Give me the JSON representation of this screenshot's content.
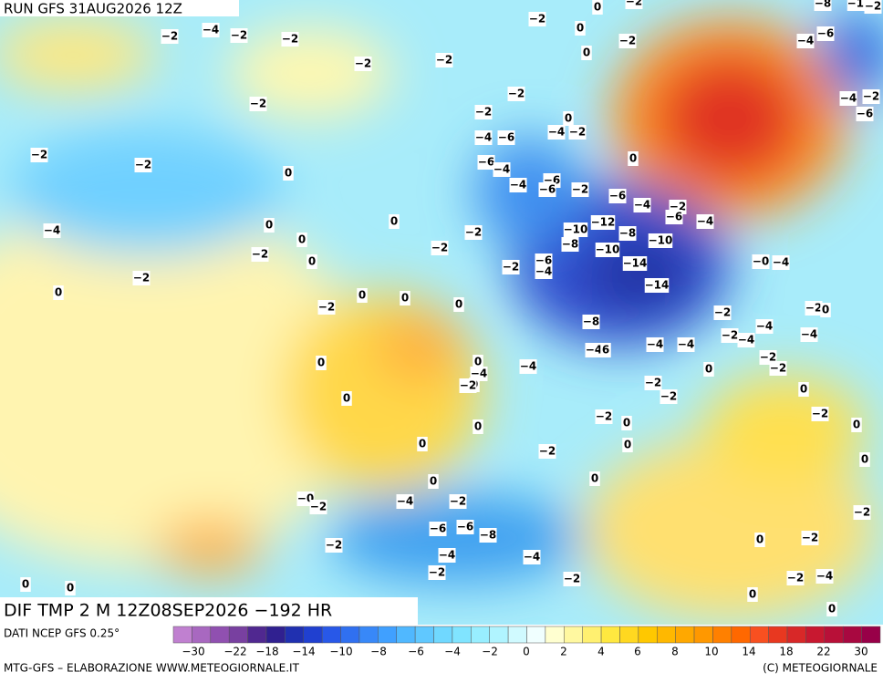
{
  "header": {
    "run": "RUN GFS 31AUG2026 12Z"
  },
  "map_title": "DIF TMP 2 M 12Z08SEP2026 −192 HR",
  "source": "DATI NCEP GFS 0.25°",
  "footer": {
    "left": "MTG-GFS – ELABORAZIONE WWW.METEOGIORNALE.IT",
    "right": "(C) METEOGIORNALE"
  },
  "colorbar": {
    "labels": [
      "−30",
      "−22",
      "−18",
      "−14",
      "−10",
      "−8",
      "−6",
      "−4",
      "−2",
      "0",
      "2",
      "4",
      "6",
      "8",
      "10",
      "14",
      "18",
      "22",
      "30"
    ],
    "colors": [
      "#c080d0",
      "#a868c0",
      "#9050b0",
      "#7840a0",
      "#502890",
      "#302090",
      "#2030b0",
      "#2040d0",
      "#2858e8",
      "#3070f0",
      "#3888f8",
      "#40a0ff",
      "#50b8ff",
      "#60c8ff",
      "#70d8ff",
      "#80e4ff",
      "#98eeff",
      "#b0f4ff",
      "#d0faff",
      "#f0ffff",
      "#ffffd0",
      "#fff8a0",
      "#fff070",
      "#ffe840",
      "#ffd820",
      "#ffc800",
      "#ffb800",
      "#ffa800",
      "#ff9800",
      "#ff8000",
      "#ff6800",
      "#f85020",
      "#e83820",
      "#d82828",
      "#c81830",
      "#b81038",
      "#a80840",
      "#980048"
    ]
  },
  "map_labels": [
    "−2",
    "−4",
    "−2",
    "−2",
    "−2",
    "−2",
    "−2",
    "0",
    "0",
    "−2",
    "0",
    "−2",
    "−2",
    "−2",
    "0",
    "−4",
    "−2",
    "−4",
    "−6",
    "−2",
    "−2",
    "0",
    "−6",
    "−4",
    "0",
    "−4",
    "−6",
    "−6",
    "−2",
    "−6",
    "−4",
    "−2",
    "−6",
    "−4",
    "0",
    "0",
    "−4",
    "0",
    "−10",
    "−12",
    "−8",
    "−8",
    "−10",
    "−10",
    "−2",
    "−2",
    "−2",
    "0",
    "−6",
    "−2",
    "−4",
    "−14",
    "−2",
    "0",
    "0",
    "0",
    "−2",
    "0",
    "−14",
    "−0",
    "−4",
    "−2",
    "0",
    "−8",
    "−2",
    "−4",
    "−4",
    "−2",
    "−4",
    "−4",
    "6",
    "−4",
    "−4",
    "0",
    "0",
    "−4",
    "0",
    "−4",
    "0",
    "−2",
    "−2",
    "0",
    "−2",
    "−2",
    "−2",
    "0",
    "−2",
    "−2",
    "0",
    "0",
    "0",
    "0",
    "−2",
    "0",
    "0",
    "0",
    "0",
    "−0",
    "−2",
    "−4",
    "−2",
    "−6",
    "−6",
    "−8",
    "−2",
    "−4",
    "−4",
    "0",
    "−2",
    "−2",
    "−2",
    "−2",
    "−2",
    "−4",
    "0",
    "0",
    "0",
    "0",
    "−2",
    "−8",
    "−10",
    "−2",
    "−4",
    "−6",
    "−4",
    "−2",
    "−6"
  ]
}
